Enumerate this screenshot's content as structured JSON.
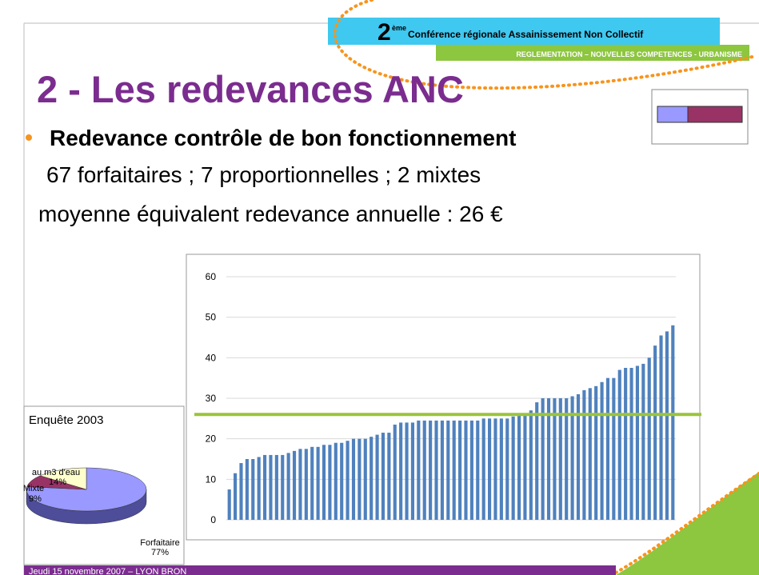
{
  "header": {
    "number": "2",
    "superscript": "ème",
    "conference": "Conférence régionale Assainissement Non Collectif",
    "subtitle": "REGLEMENTATION – NOUVELLES COMPETENCES - URBANISME"
  },
  "title": "2 - Les redevances ANC",
  "bullet": {
    "heading": "Redevance contrôle de bon fonctionnement",
    "lines": [
      "67 forfaitaires ; 7 proportionnelles ; 2 mixtes",
      "moyenne équivalent redevance annuelle : 26 €"
    ]
  },
  "footer": "Jeudi 15 novembre 2007 – LYON BRON",
  "chart_data": [
    {
      "type": "bar",
      "color": "#4f81bd",
      "ylim": [
        0,
        60
      ],
      "yticks": [
        0,
        10,
        20,
        30,
        40,
        50,
        60
      ],
      "grid": true,
      "reference_line": 26,
      "reference_color": "#9bc43a",
      "categories": [
        null,
        null,
        null,
        null,
        null,
        null,
        null,
        null,
        null,
        null,
        null,
        null,
        null,
        null,
        null,
        null,
        null,
        null,
        null,
        null,
        null,
        null,
        null,
        null,
        null,
        null,
        null,
        null,
        null,
        null,
        null,
        null,
        null,
        null,
        null,
        null,
        null,
        null,
        null,
        null,
        null,
        null,
        null,
        null,
        null,
        null,
        null,
        null,
        null,
        null,
        null,
        null,
        null,
        null,
        null,
        null,
        null,
        null,
        null,
        null,
        null,
        null,
        null,
        null,
        null,
        null,
        null,
        null,
        null,
        null,
        null,
        null,
        null,
        null,
        null,
        null
      ],
      "values": [
        7.5,
        11.5,
        14,
        15,
        15,
        15.5,
        16,
        16,
        16,
        16,
        16.5,
        17,
        17.5,
        17.5,
        18,
        18,
        18.5,
        18.5,
        19,
        19,
        19.5,
        20,
        20,
        20,
        20.5,
        21,
        21.5,
        21.5,
        23.5,
        24,
        24,
        24,
        24.5,
        24.5,
        24.5,
        24.5,
        24.5,
        24.5,
        24.5,
        24.5,
        24.5,
        24.5,
        24.5,
        25,
        25,
        25,
        25,
        25,
        25.5,
        26,
        26,
        27,
        29,
        30,
        30,
        30,
        30,
        30,
        30.5,
        31,
        32,
        32.5,
        33,
        34,
        35,
        35,
        37,
        37.5,
        37.5,
        38,
        38.5,
        40,
        43,
        45.5,
        46.5,
        48
      ]
    },
    {
      "type": "pie",
      "title": "Enquête 2003",
      "categories": [
        "Forfaitaire",
        "Mixte",
        "au m3 d'eau"
      ],
      "values": [
        77,
        9,
        14
      ],
      "value_labels": [
        "77%",
        "9%",
        "14%"
      ],
      "colors": [
        "#9999ff",
        "#993366",
        "#ffffcc"
      ]
    }
  ]
}
